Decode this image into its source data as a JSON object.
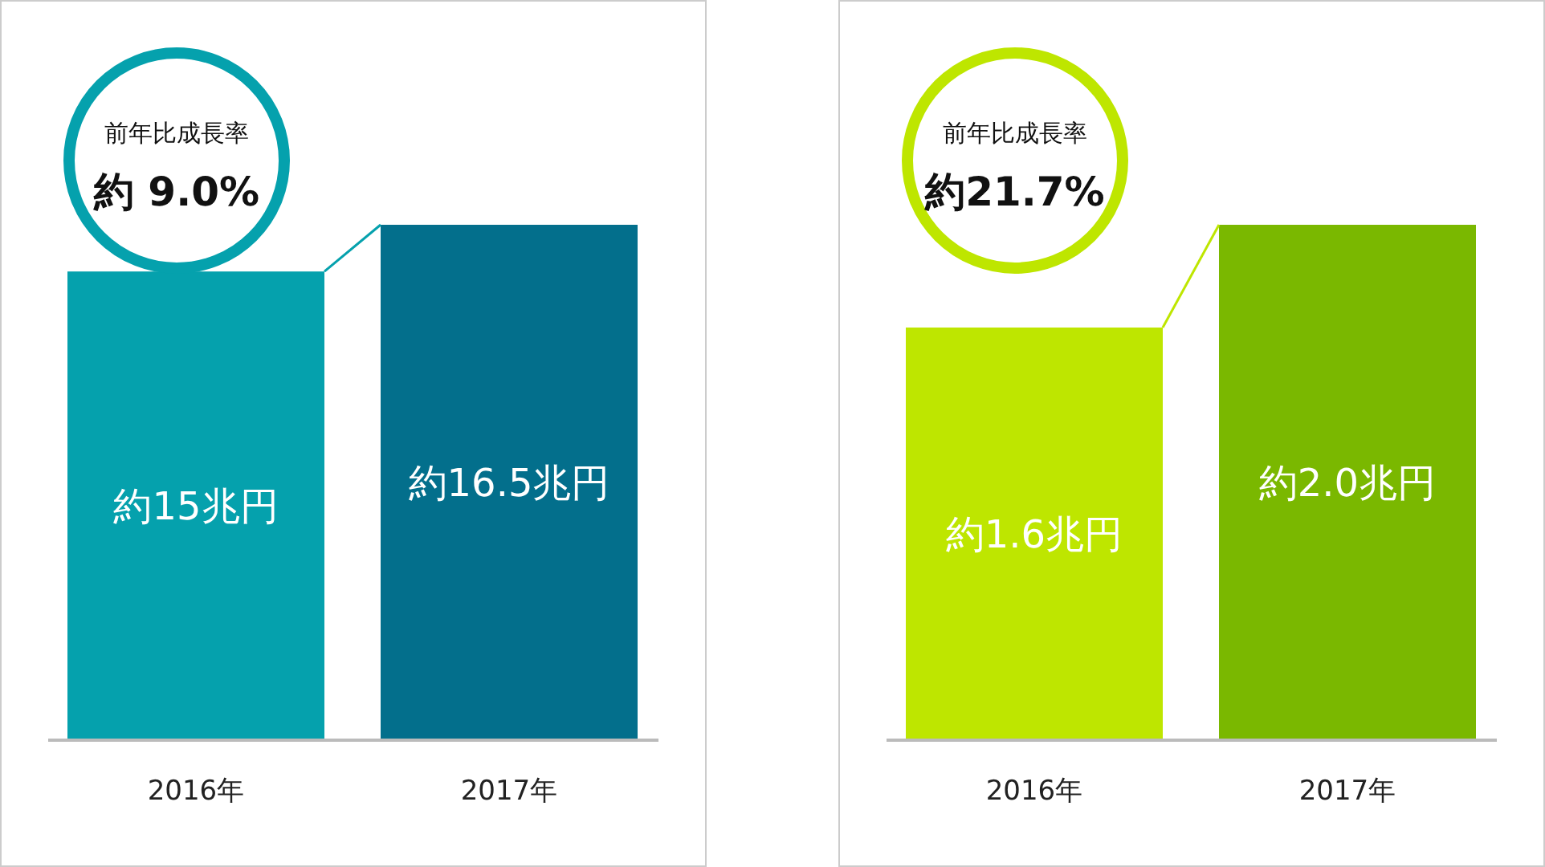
{
  "chart_data": [
    {
      "type": "bar",
      "categories": [
        "2016年",
        "2017年"
      ],
      "values": [
        15,
        16.5
      ],
      "colors": [
        "#05a1ad",
        "#036f8c"
      ],
      "value_labels": [
        "約15兆円",
        "約16.5兆円"
      ],
      "annotations": [
        "前年比成長率",
        "約 9.0%"
      ]
    },
    {
      "type": "bar",
      "categories": [
        "2016年",
        "2017年"
      ],
      "values": [
        1.6,
        2.0
      ],
      "colors": [
        "#bee600",
        "#7ab800"
      ],
      "value_labels": [
        "約1.6兆円",
        "約2.0兆円"
      ],
      "annotations": [
        "前年比成長率",
        "約21.7%"
      ]
    }
  ]
}
